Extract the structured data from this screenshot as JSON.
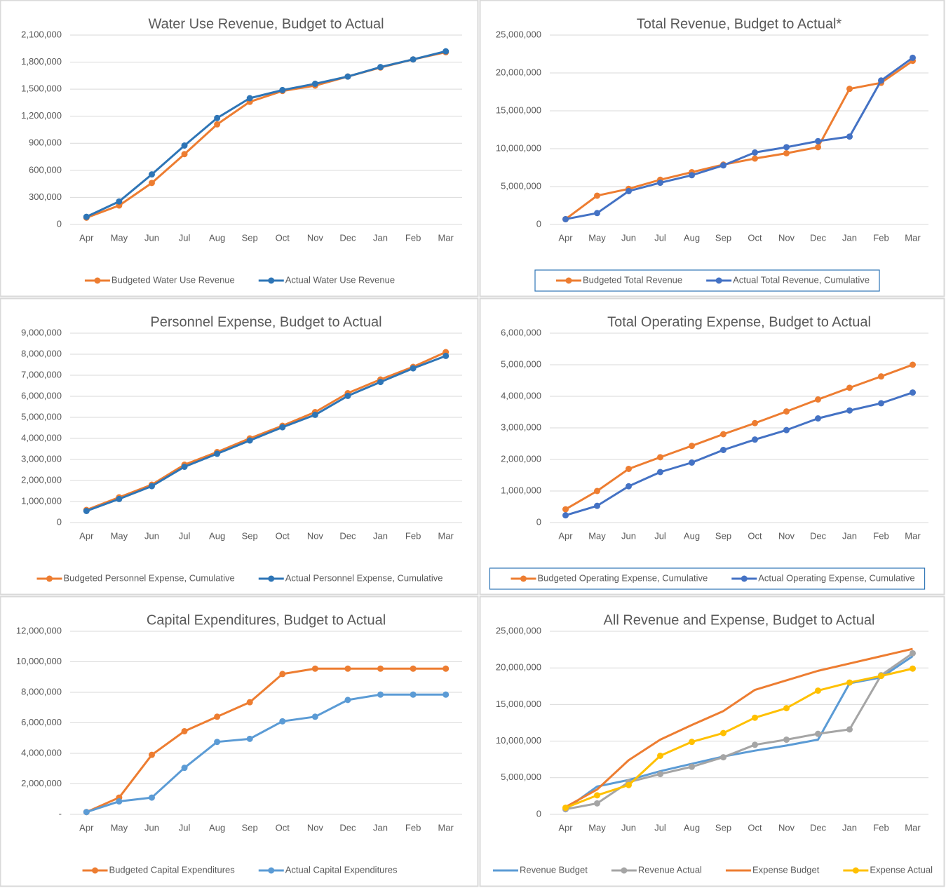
{
  "chart_data": [
    {
      "type": "line",
      "title": "Water Use Revenue, Budget to Actual",
      "categories": [
        "Apr",
        "May",
        "Jun",
        "Jul",
        "Aug",
        "Sep",
        "Oct",
        "Nov",
        "Dec",
        "Jan",
        "Feb",
        "Mar"
      ],
      "ylim": [
        0,
        2100000
      ],
      "yticks": [
        0,
        {
          "value": 300000,
          "label": "300,000"
        },
        {
          "value": 600000,
          "label": "600,000"
        },
        {
          "value": 900000,
          "label": "900,000"
        },
        {
          "value": 1200000,
          "label": "1,200,000"
        },
        {
          "value": 1500000,
          "label": "1,500,000"
        },
        {
          "value": 1800000,
          "label": "1,800,000"
        },
        {
          "value": 2100000,
          "label": "2,100,000"
        }
      ],
      "grid": true,
      "legend": "bottom",
      "legend_frame": false,
      "series": [
        {
          "name": "Budgeted Water Use Revenue",
          "color": "#ed7d31",
          "markers": true,
          "values": [
            75000,
            210000,
            460000,
            780000,
            1110000,
            1360000,
            1480000,
            1540000,
            1640000,
            1740000,
            1830000,
            1910000
          ]
        },
        {
          "name": "Actual Water Use Revenue",
          "color": "#2e75b6",
          "markers": true,
          "values": [
            85000,
            255000,
            555000,
            875000,
            1180000,
            1400000,
            1490000,
            1560000,
            1640000,
            1745000,
            1830000,
            1920000
          ]
        }
      ]
    },
    {
      "type": "line",
      "title": "Total Revenue, Budget to Actual*",
      "categories": [
        "Apr",
        "May",
        "Jun",
        "Jul",
        "Aug",
        "Sep",
        "Oct",
        "Nov",
        "Dec",
        "Jan",
        "Feb",
        "Mar"
      ],
      "ylim": [
        0,
        25000000
      ],
      "yticks": [
        0,
        {
          "value": 5000000,
          "label": "5,000,000"
        },
        {
          "value": 10000000,
          "label": "10,000,000"
        },
        {
          "value": 15000000,
          "label": "15,000,000"
        },
        {
          "value": 20000000,
          "label": "20,000,000"
        },
        {
          "value": 25000000,
          "label": "25,000,000"
        }
      ],
      "grid": true,
      "legend": "bottom",
      "legend_frame": true,
      "series": [
        {
          "name": "Budgeted Total Revenue",
          "color": "#ed7d31",
          "markers": true,
          "values": [
            700000,
            3800000,
            4700000,
            5900000,
            6900000,
            7900000,
            8700000,
            9400000,
            10200000,
            17900000,
            18700000,
            21600000
          ]
        },
        {
          "name": "Actual Total Revenue, Cumulative",
          "color": "#4472c4",
          "markers": true,
          "values": [
            700000,
            1500000,
            4400000,
            5500000,
            6500000,
            7800000,
            9500000,
            10200000,
            11000000,
            11600000,
            19000000,
            22000000
          ]
        }
      ]
    },
    {
      "type": "line",
      "title": "Personnel Expense, Budget to Actual",
      "categories": [
        "Apr",
        "May",
        "Jun",
        "Jul",
        "Aug",
        "Sep",
        "Oct",
        "Nov",
        "Dec",
        "Jan",
        "Feb",
        "Mar"
      ],
      "ylim": [
        0,
        9000000
      ],
      "yticks": [
        0,
        {
          "value": 1000000,
          "label": "1,000,000"
        },
        {
          "value": 2000000,
          "label": "2,000,000"
        },
        {
          "value": 3000000,
          "label": "3,000,000"
        },
        {
          "value": 4000000,
          "label": "4,000,000"
        },
        {
          "value": 5000000,
          "label": "5,000,000"
        },
        {
          "value": 6000000,
          "label": "6,000,000"
        },
        {
          "value": 7000000,
          "label": "7,000,000"
        },
        {
          "value": 8000000,
          "label": "8,000,000"
        },
        {
          "value": 9000000,
          "label": "9,000,000"
        }
      ],
      "grid": true,
      "legend": "bottom",
      "legend_frame": false,
      "series": [
        {
          "name": "Budgeted Personnel Expense, Cumulative",
          "color": "#ed7d31",
          "markers": true,
          "values": [
            600000,
            1200000,
            1800000,
            2750000,
            3350000,
            4000000,
            4600000,
            5250000,
            6150000,
            6800000,
            7400000,
            8100000
          ]
        },
        {
          "name": "Actual Personnel Expense, Cumulative",
          "color": "#2e75b6",
          "markers": true,
          "values": [
            550000,
            1120000,
            1730000,
            2650000,
            3270000,
            3900000,
            4530000,
            5120000,
            6020000,
            6680000,
            7330000,
            7920000
          ]
        }
      ]
    },
    {
      "type": "line",
      "title": "Total Operating Expense, Budget to Actual",
      "categories": [
        "Apr",
        "May",
        "Jun",
        "Jul",
        "Aug",
        "Sep",
        "Oct",
        "Nov",
        "Dec",
        "Jan",
        "Feb",
        "Mar"
      ],
      "ylim": [
        0,
        6000000
      ],
      "yticks": [
        0,
        {
          "value": 1000000,
          "label": "1,000,000"
        },
        {
          "value": 2000000,
          "label": "2,000,000"
        },
        {
          "value": 3000000,
          "label": "3,000,000"
        },
        {
          "value": 4000000,
          "label": "4,000,000"
        },
        {
          "value": 5000000,
          "label": "5,000,000"
        },
        {
          "value": 6000000,
          "label": "6,000,000"
        }
      ],
      "grid": true,
      "legend": "bottom",
      "legend_frame": true,
      "series": [
        {
          "name": "Budgeted Operating Expense, Cumulative",
          "color": "#ed7d31",
          "markers": true,
          "values": [
            420000,
            1000000,
            1700000,
            2070000,
            2430000,
            2800000,
            3150000,
            3520000,
            3900000,
            4270000,
            4630000,
            5000000
          ]
        },
        {
          "name": "Actual Operating Expense, Cumulative",
          "color": "#4472c4",
          "markers": true,
          "values": [
            230000,
            530000,
            1150000,
            1600000,
            1900000,
            2300000,
            2630000,
            2930000,
            3300000,
            3550000,
            3780000,
            4120000
          ]
        }
      ]
    },
    {
      "type": "line",
      "title": "Capital Expenditures, Budget to Actual",
      "categories": [
        "Apr",
        "May",
        "Jun",
        "Jul",
        "Aug",
        "Sep",
        "Oct",
        "Nov",
        "Dec",
        "Jan",
        "Feb",
        "Mar"
      ],
      "ylim": [
        0,
        12000000
      ],
      "yticks": [
        {
          "value": 0,
          "label": "-"
        },
        {
          "value": 2000000,
          "label": "2,000,000"
        },
        {
          "value": 4000000,
          "label": "4,000,000"
        },
        {
          "value": 6000000,
          "label": "6,000,000"
        },
        {
          "value": 8000000,
          "label": "8,000,000"
        },
        {
          "value": 10000000,
          "label": "10,000,000"
        },
        {
          "value": 12000000,
          "label": "12,000,000"
        }
      ],
      "grid": true,
      "legend": "bottom",
      "legend_frame": false,
      "series": [
        {
          "name": "Budgeted Capital Expenditures",
          "color": "#ed7d31",
          "markers": true,
          "values": [
            150000,
            1100000,
            3900000,
            5450000,
            6400000,
            7350000,
            9200000,
            9550000,
            9550000,
            9550000,
            9550000,
            9550000
          ]
        },
        {
          "name": "Actual Capital Expenditures",
          "color": "#5b9bd5",
          "markers": true,
          "values": [
            150000,
            850000,
            1100000,
            3050000,
            4750000,
            4950000,
            6100000,
            6400000,
            7500000,
            7850000,
            7850000,
            7850000
          ]
        }
      ]
    },
    {
      "type": "line",
      "title": "All Revenue and Expense, Budget to Actual",
      "categories": [
        "Apr",
        "May",
        "Jun",
        "Jul",
        "Aug",
        "Sep",
        "Oct",
        "Nov",
        "Dec",
        "Jan",
        "Feb",
        "Mar"
      ],
      "ylim": [
        0,
        25000000
      ],
      "yticks": [
        0,
        {
          "value": 5000000,
          "label": "5,000,000"
        },
        {
          "value": 10000000,
          "label": "10,000,000"
        },
        {
          "value": 15000000,
          "label": "15,000,000"
        },
        {
          "value": 20000000,
          "label": "20,000,000"
        },
        {
          "value": 25000000,
          "label": "25,000,000"
        }
      ],
      "grid": true,
      "legend": "bottom",
      "legend_frame": false,
      "series": [
        {
          "name": "Revenue Budget",
          "color": "#5b9bd5",
          "markers": false,
          "values": [
            700000,
            3800000,
            4700000,
            5900000,
            6900000,
            7900000,
            8700000,
            9400000,
            10200000,
            17900000,
            18700000,
            21600000
          ]
        },
        {
          "name": "Revenue Actual",
          "color": "#a5a5a5",
          "markers": true,
          "values": [
            700000,
            1500000,
            4400000,
            5500000,
            6500000,
            7800000,
            9500000,
            10200000,
            11000000,
            11600000,
            19000000,
            22000000
          ]
        },
        {
          "name": "Expense Budget",
          "color": "#ed7d31",
          "markers": false,
          "values": [
            1000000,
            3400000,
            7400000,
            10200000,
            12200000,
            14100000,
            17000000,
            18300000,
            19600000,
            20600000,
            21600000,
            22600000
          ]
        },
        {
          "name": "Expense Actual",
          "color": "#ffc000",
          "markers": true,
          "values": [
            900000,
            2600000,
            4000000,
            8000000,
            9900000,
            11100000,
            13200000,
            14500000,
            16900000,
            18000000,
            18900000,
            19900000
          ]
        }
      ]
    }
  ]
}
